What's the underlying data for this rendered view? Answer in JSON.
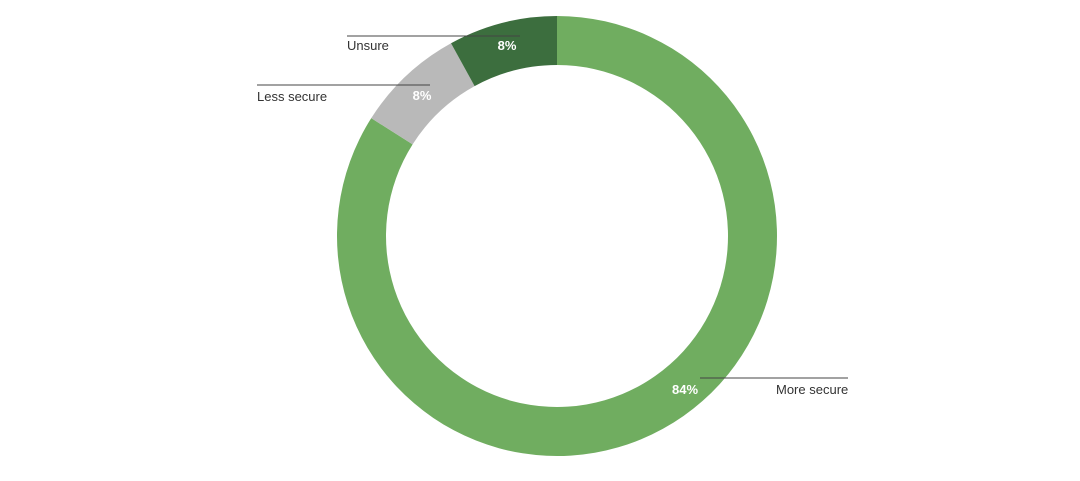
{
  "chart_data": {
    "type": "pie",
    "variant": "donut",
    "slices": [
      {
        "category": "More secure",
        "value": 84,
        "label": "84%",
        "color": "#70ad60"
      },
      {
        "category": "Unsure",
        "value": 8,
        "label": "8%",
        "color": "#b9b9b9"
      },
      {
        "category": "Less secure",
        "value": 8,
        "label": "8%",
        "color": "#3c6e3e"
      }
    ],
    "start_angle_deg": 0,
    "direction": "clockwise"
  }
}
